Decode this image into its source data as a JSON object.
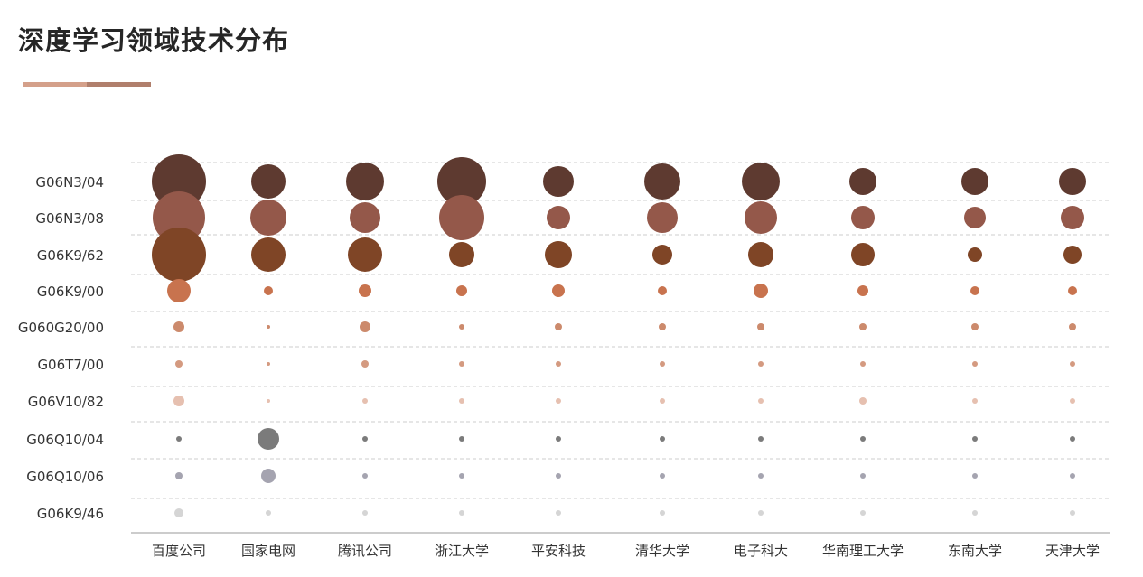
{
  "title": "深度学习领域技术分布",
  "colors": {
    "accent_left": "#d4a08a",
    "accent_right": "#b07f6c",
    "grid": "#cccccc",
    "axis": "#999999",
    "rows": [
      "#5e3a30",
      "#94584a",
      "#7f4526",
      "#c8734e",
      "#cc8a6c",
      "#d49a80",
      "#e6c0b0",
      "#7b7b7b",
      "#a5a4b0",
      "#d5d5d5"
    ]
  },
  "chart_data": {
    "type": "bubble",
    "title": "深度学习领域技术分布",
    "x_categories": [
      "百度公司",
      "国家电网",
      "腾讯公司",
      "浙江大学",
      "平安科技",
      "清华大学",
      "电子科大",
      "华南理工大学",
      "东南大学",
      "天津大学"
    ],
    "y_categories": [
      "G06N3/04",
      "G06N3/08",
      "G06K9/62",
      "G06K9/00",
      "G060G20/00",
      "G06T7/00",
      "G06V10/82",
      "G06Q10/04",
      "G06Q10/06",
      "G06K9/46"
    ],
    "grid": "dashed-horizontal",
    "values": [
      [
        30,
        19,
        21,
        27,
        17,
        20,
        21,
        15,
        15,
        15
      ],
      [
        29,
        20,
        17,
        25,
        13,
        17,
        18,
        13,
        12,
        13
      ],
      [
        30,
        19,
        19,
        14,
        15,
        11,
        14,
        13,
        8,
        10
      ],
      [
        13,
        5,
        7,
        6,
        7,
        5,
        8,
        6,
        5,
        5
      ],
      [
        6,
        2,
        6,
        3,
        4,
        4,
        4,
        4,
        4,
        4
      ],
      [
        4,
        2,
        4,
        3,
        3,
        3,
        3,
        3,
        3,
        3
      ],
      [
        6,
        2,
        3,
        3,
        3,
        3,
        3,
        4,
        3,
        3
      ],
      [
        3,
        12,
        3,
        3,
        3,
        3,
        3,
        3,
        3,
        3
      ],
      [
        4,
        8,
        3,
        3,
        3,
        3,
        3,
        3,
        3,
        3
      ],
      [
        5,
        3,
        3,
        3,
        3,
        3,
        3,
        3,
        3,
        3
      ]
    ]
  }
}
